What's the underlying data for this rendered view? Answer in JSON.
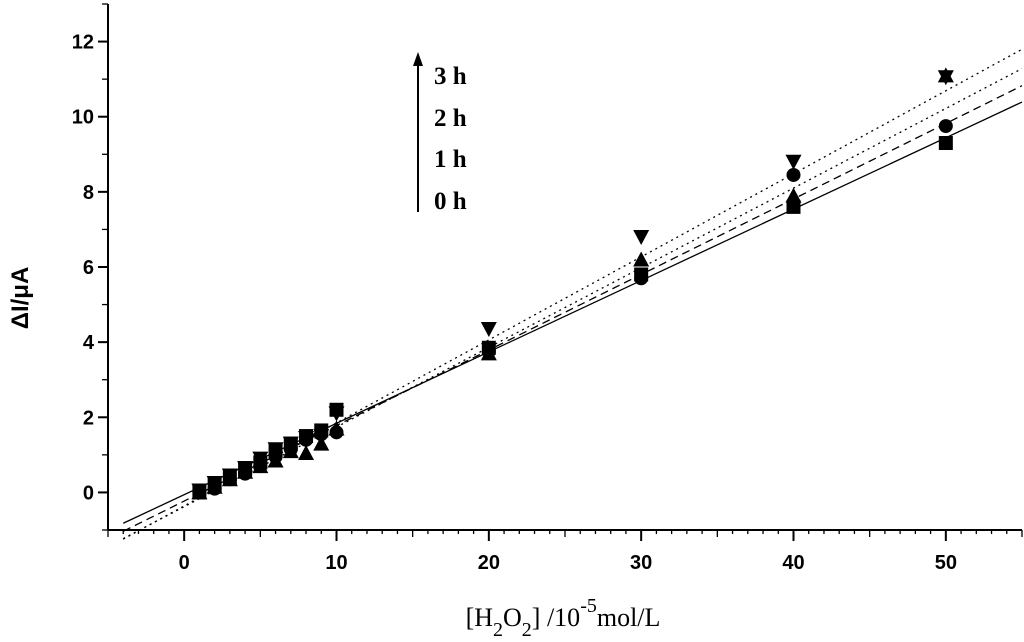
{
  "chart_data": {
    "type": "scatter",
    "title": "",
    "xlabel_parts": [
      "[H",
      "2",
      "O",
      "2",
      "] /10",
      "-5",
      "mol/L"
    ],
    "ylabel": "ΔI/μA",
    "xlim": [
      -5,
      55
    ],
    "ylim": [
      -1,
      13
    ],
    "x_ticks": [
      0,
      10,
      20,
      30,
      40,
      50
    ],
    "y_ticks": [
      0,
      2,
      4,
      6,
      8,
      10,
      12
    ],
    "legend": [
      "3 h",
      "2 h",
      "1 h",
      "0 h"
    ],
    "fits": [
      {
        "style": "solid",
        "slope": 0.19,
        "intercept": -0.06
      },
      {
        "style": "dashed",
        "slope": 0.201,
        "intercept": -0.23
      },
      {
        "style": "dotted",
        "slope": 0.212,
        "intercept": -0.38
      },
      {
        "style": "dotted",
        "slope": 0.221,
        "intercept": -0.36
      }
    ],
    "series": [
      {
        "marker": "square",
        "x": [
          1,
          2,
          3,
          4,
          5,
          6,
          7,
          8,
          9,
          10,
          20,
          30,
          40,
          50
        ],
        "y": [
          0.0,
          0.2,
          0.4,
          0.6,
          0.8,
          1.1,
          1.3,
          1.5,
          1.65,
          2.2,
          3.85,
          5.8,
          7.6,
          9.3
        ]
      },
      {
        "marker": "circle",
        "x": [
          1,
          2,
          3,
          4,
          5,
          6,
          7,
          8,
          9,
          10,
          20,
          30,
          40,
          50
        ],
        "y": [
          0.0,
          0.1,
          0.35,
          0.5,
          0.7,
          0.95,
          1.15,
          1.4,
          1.55,
          1.6,
          3.75,
          5.7,
          8.45,
          9.75
        ]
      },
      {
        "marker": "triangle-up",
        "x": [
          1,
          2,
          3,
          4,
          5,
          6,
          7,
          8,
          9,
          10,
          20,
          30,
          40,
          50
        ],
        "y": [
          0.0,
          0.15,
          0.35,
          0.55,
          0.7,
          0.85,
          1.1,
          1.05,
          1.3,
          1.7,
          3.7,
          6.2,
          7.9,
          11.1
        ]
      },
      {
        "marker": "triangle-down",
        "x": [
          1,
          2,
          3,
          4,
          5,
          6,
          7,
          8,
          9,
          10,
          20,
          30,
          40,
          50
        ],
        "y": [
          0.05,
          0.25,
          0.45,
          0.65,
          0.9,
          1.15,
          1.3,
          1.45,
          1.5,
          2.1,
          4.35,
          6.8,
          8.8,
          11.05
        ]
      }
    ]
  }
}
